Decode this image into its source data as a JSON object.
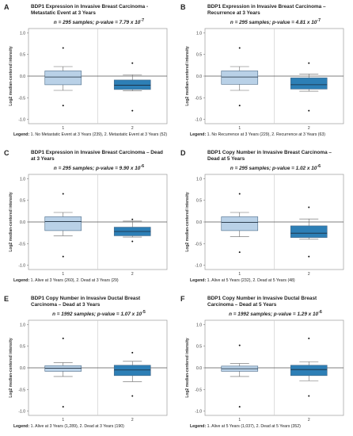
{
  "figure": {
    "y_ticks": [
      "1.0",
      "0.5",
      "0.0",
      "-0.5",
      "-1.0"
    ],
    "x_ticks": [
      "1",
      "2"
    ]
  },
  "chart_data": [
    {
      "type": "box",
      "panel": "A",
      "title": "BDP1 Expression in Invasive Breast Carcinoma - Metastatic Event at 3 Years",
      "n_label": "n = 295 samples; p-value = 7.79 x 10",
      "p_exp": "-7",
      "ylabel": "Log2 median-centered intensity",
      "ylim": [
        -1.1,
        1.1
      ],
      "legend_label": "Legend:",
      "legend_text": "1. No Metastatic Event at 3 Years (239), 2. Metastatic Event at 3 Years (52)",
      "categories": [
        "1",
        "2"
      ],
      "boxes": [
        {
          "whisker_low": -0.33,
          "q1": -0.2,
          "median": -0.02,
          "q3": 0.12,
          "whisker_high": 0.22,
          "outliers": [
            0.65,
            -0.68
          ]
        },
        {
          "whisker_low": -0.34,
          "q1": -0.31,
          "median": -0.21,
          "q3": -0.09,
          "whisker_high": 0.03,
          "outliers": [
            0.3,
            -0.8
          ]
        }
      ]
    },
    {
      "type": "box",
      "panel": "B",
      "title": "BDP1 Expression in Invasive Breast Carcinoma – Recurrence at 3 Years",
      "n_label": "n = 295 samples; p-value = 4.81 x 10",
      "p_exp": "-7",
      "ylabel": "Log2 median-centered intensity",
      "ylim": [
        -1.1,
        1.1
      ],
      "legend_label": "Legend:",
      "legend_text": "1. No Recurrence at 3 Years (229), 2. Recurrence at 3 Years (63)",
      "categories": [
        "1",
        "2"
      ],
      "boxes": [
        {
          "whisker_low": -0.33,
          "q1": -0.19,
          "median": -0.02,
          "q3": 0.12,
          "whisker_high": 0.22,
          "outliers": [
            0.65,
            -0.68
          ]
        },
        {
          "whisker_low": -0.35,
          "q1": -0.3,
          "median": -0.2,
          "q3": -0.04,
          "whisker_high": 0.05,
          "outliers": [
            0.3,
            -0.8
          ]
        }
      ]
    },
    {
      "type": "box",
      "panel": "C",
      "title": "BDP1 Expression in Invasive Breast Carcinoma – Dead at 3 Years",
      "n_label": "n = 295 samples; p-value = 9.90 x 10",
      "p_exp": "-6",
      "ylabel": "Log2 median-centered intensity",
      "ylim": [
        -1.1,
        1.1
      ],
      "legend_label": "Legend:",
      "legend_text": "1. Alive at 3 Years (260), 2. Dead at 3 Years (29)",
      "categories": [
        "1",
        "2"
      ],
      "boxes": [
        {
          "whisker_low": -0.32,
          "q1": -0.2,
          "median": 0.01,
          "q3": 0.12,
          "whisker_high": 0.22,
          "outliers": [
            0.65,
            -0.8
          ]
        },
        {
          "whisker_low": -0.35,
          "q1": -0.32,
          "median": -0.22,
          "q3": -0.12,
          "whisker_high": 0.02,
          "outliers": [
            0.06,
            -0.45
          ]
        }
      ]
    },
    {
      "type": "box",
      "panel": "D",
      "title": "BDP1 Copy Number in Invasive Breast Carcinoma – Dead at 5 Years",
      "n_label": "n = 295 samples; p-value = 1.02 x 10",
      "p_exp": "-6",
      "ylabel": "Log2 median-centered intensity",
      "ylim": [
        -1.1,
        1.1
      ],
      "legend_label": "Legend:",
      "legend_text": "1. Alive at 5 Years (232), 2. Dead at 5 Years (48)",
      "categories": [
        "1",
        "2"
      ],
      "boxes": [
        {
          "whisker_low": -0.34,
          "q1": -0.2,
          "median": -0.01,
          "q3": 0.12,
          "whisker_high": 0.22,
          "outliers": [
            0.65,
            -0.7
          ]
        },
        {
          "whisker_low": -0.4,
          "q1": -0.36,
          "median": -0.26,
          "q3": -0.09,
          "whisker_high": 0.07,
          "outliers": [
            0.34,
            -0.8
          ]
        }
      ]
    },
    {
      "type": "box",
      "panel": "E",
      "title": "BDP1 Copy Number in Invasive Ductal Breast Carcinoma – Dead at 3 Years",
      "n_label": "n = 1992 samples; p-value = 1.07 x 10",
      "p_exp": "-5",
      "ylabel": "Log2 median-centered intensity",
      "ylim": [
        -1.1,
        1.1
      ],
      "legend_label": "Legend:",
      "legend_text": "1. Alive at 3 Years (1,289), 2. Dead at 3 Years (190)",
      "categories": [
        "1",
        "2"
      ],
      "boxes": [
        {
          "whisker_low": -0.2,
          "q1": -0.08,
          "median": -0.01,
          "q3": 0.05,
          "whisker_high": 0.12,
          "outliers": [
            0.68,
            -0.9
          ]
        },
        {
          "whisker_low": -0.32,
          "q1": -0.18,
          "median": -0.05,
          "q3": 0.06,
          "whisker_high": 0.15,
          "outliers": [
            0.35,
            -0.65
          ]
        }
      ]
    },
    {
      "type": "box",
      "panel": "F",
      "title": "BDP1 Copy Number in Invasive Ductal  Breast Carcinoma – Dead at 5 Years",
      "n_label": "n = 1992 samples; p-value = 1.29 x 10",
      "p_exp": "-6",
      "ylabel": "Log2 median-centered intensity",
      "ylim": [
        -1.1,
        1.1
      ],
      "legend_label": "Legend:",
      "legend_text": "1. Alive at 5 Years (1,037), 2. Dead at 5 Years (352)",
      "categories": [
        "1",
        "2"
      ],
      "boxes": [
        {
          "whisker_low": -0.2,
          "q1": -0.08,
          "median": -0.02,
          "q3": 0.04,
          "whisker_high": 0.1,
          "outliers": [
            0.52,
            -0.9
          ]
        },
        {
          "whisker_low": -0.3,
          "q1": -0.18,
          "median": -0.04,
          "q3": 0.06,
          "whisker_high": 0.14,
          "outliers": [
            0.68,
            -0.65
          ]
        }
      ]
    }
  ]
}
